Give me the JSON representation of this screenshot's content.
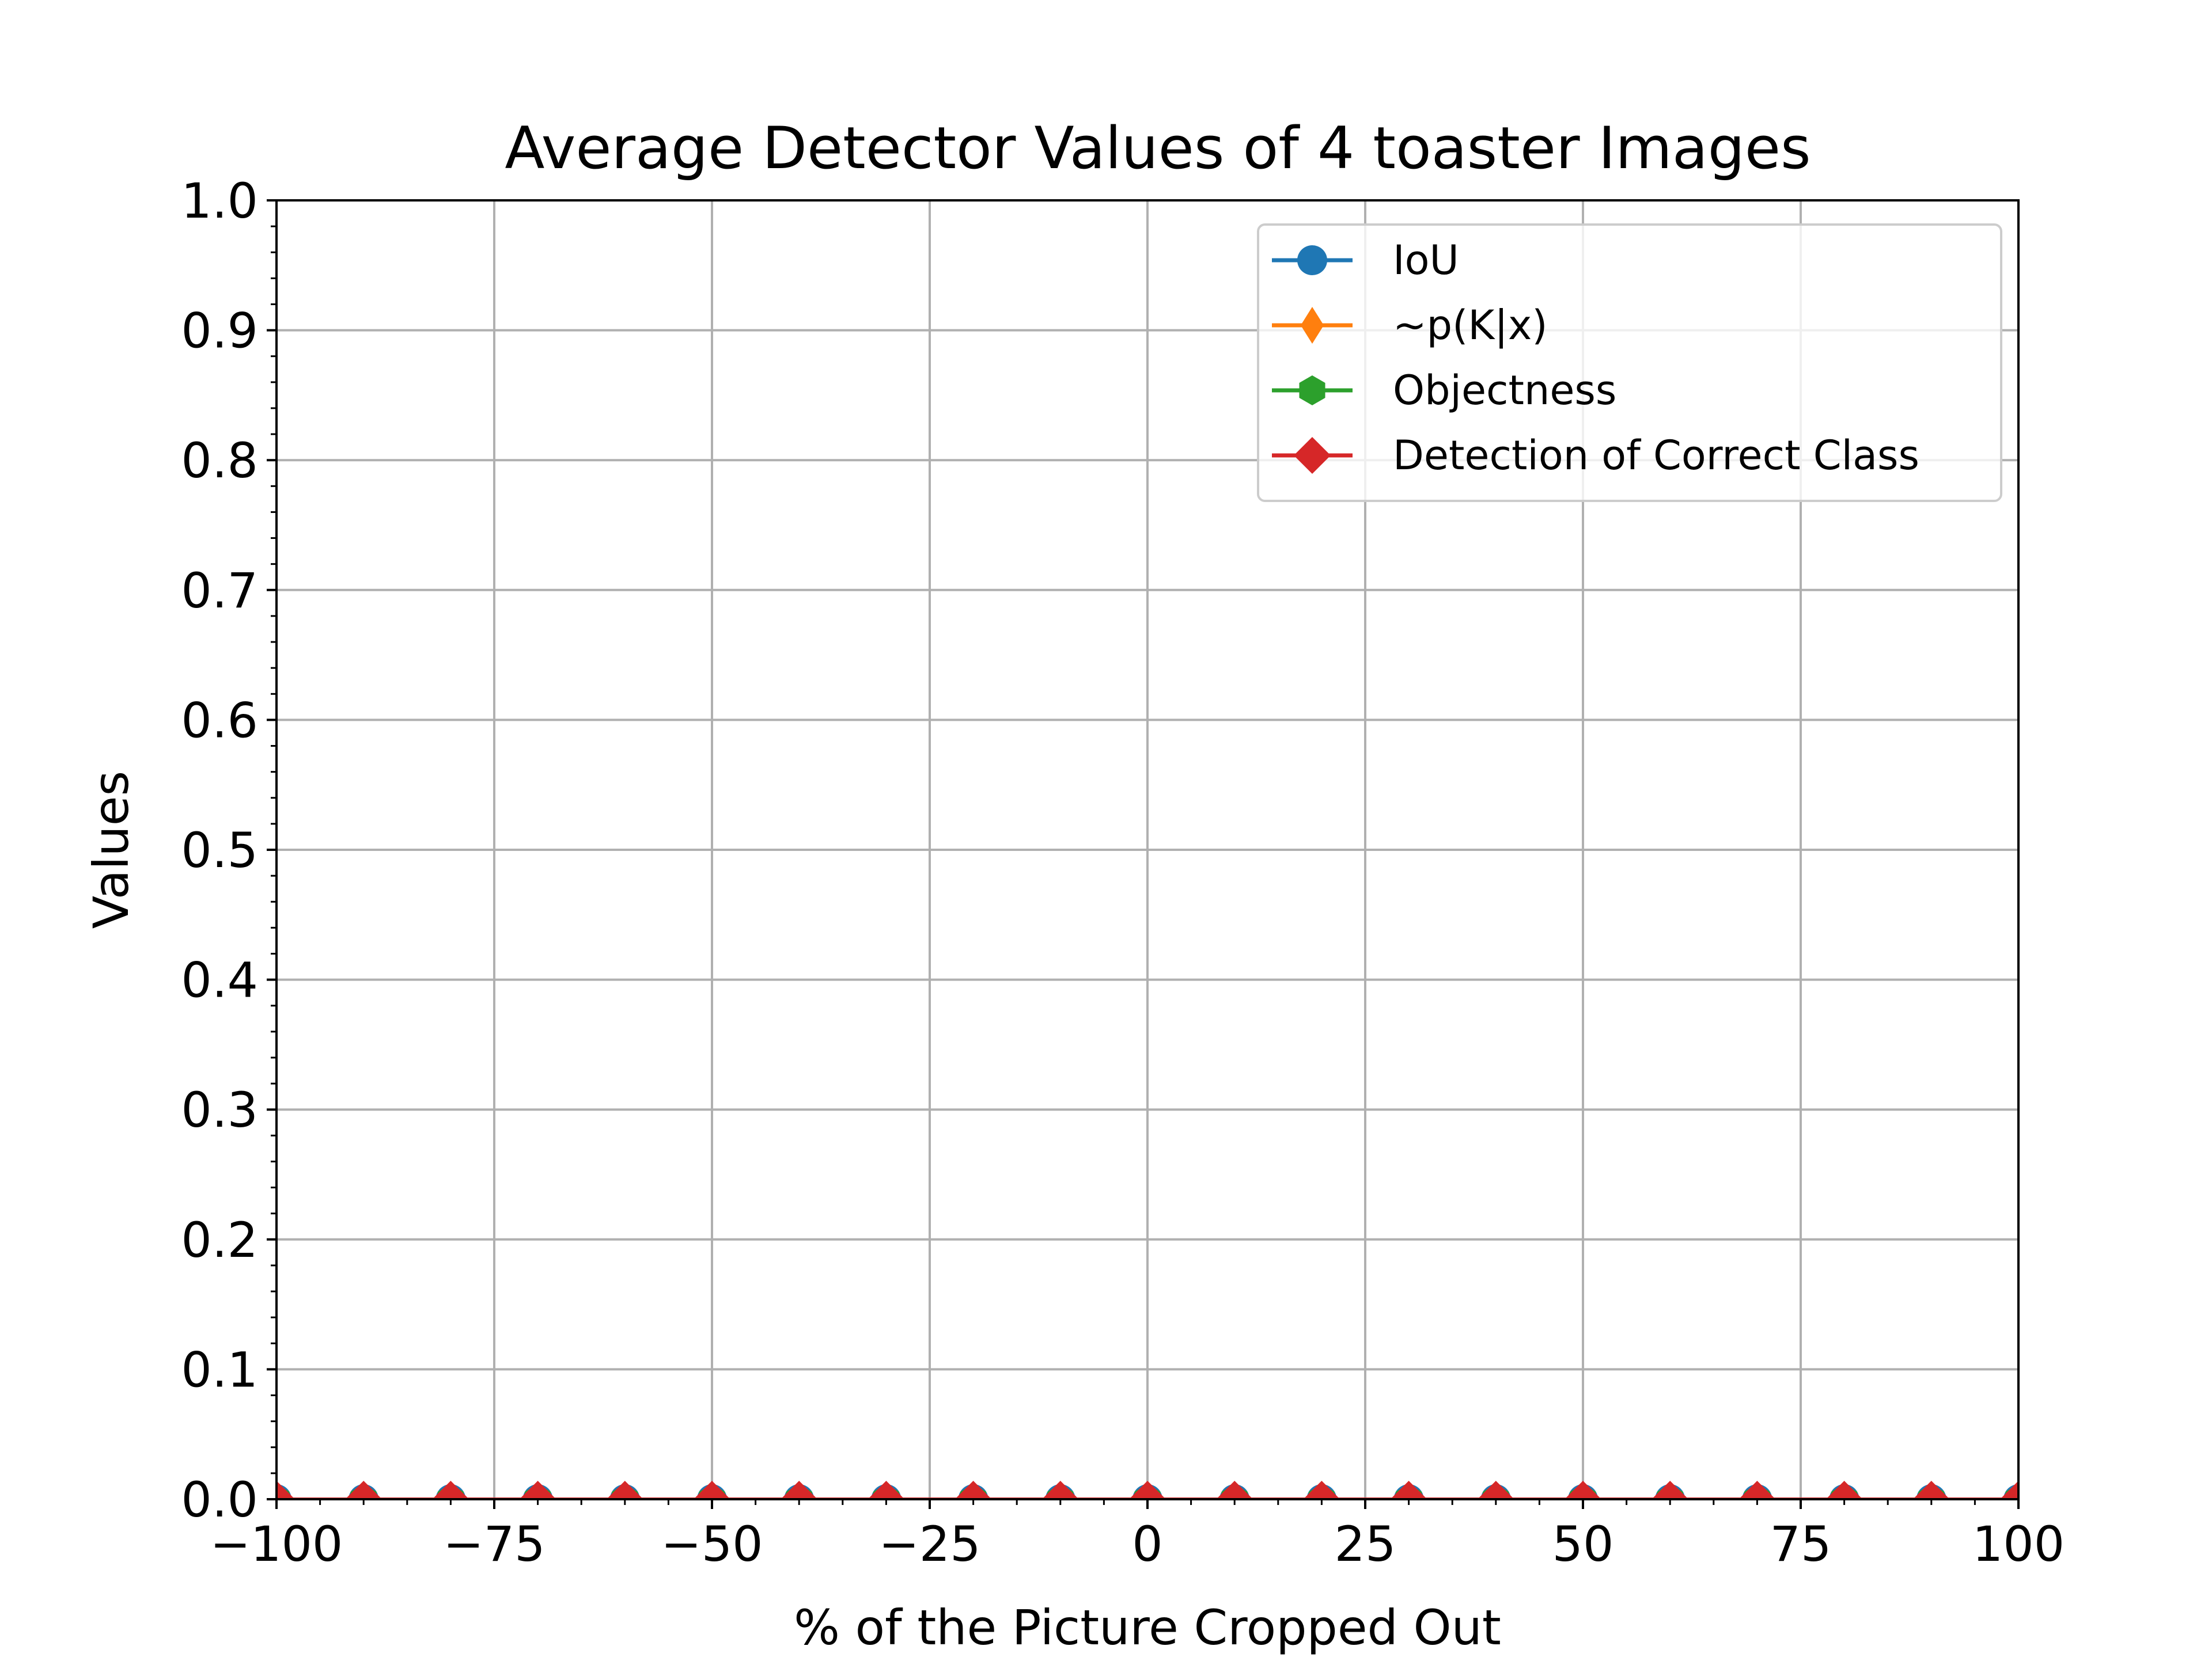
{
  "chart_data": {
    "type": "line",
    "title": "Average Detector Values of 4 toaster Images",
    "xlabel": "% of the Picture Cropped Out",
    "ylabel": "Values",
    "xlim": [
      -100,
      100
    ],
    "ylim": [
      0.0,
      1.0
    ],
    "grid": true,
    "legend_position": "top-right",
    "x_ticks": [
      "−100",
      "−75",
      "−50",
      "−25",
      "0",
      "25",
      "50",
      "75",
      "100"
    ],
    "x_tick_values": [
      -100,
      -75,
      -50,
      -25,
      0,
      25,
      50,
      75,
      100
    ],
    "y_ticks": [
      "0.0",
      "0.1",
      "0.2",
      "0.3",
      "0.4",
      "0.5",
      "0.6",
      "0.7",
      "0.8",
      "0.9",
      "1.0"
    ],
    "y_tick_values": [
      0.0,
      0.1,
      0.2,
      0.3,
      0.4,
      0.5,
      0.6,
      0.7,
      0.8,
      0.9,
      1.0
    ],
    "x": [
      -100,
      -90,
      -80,
      -70,
      -60,
      -50,
      -40,
      -30,
      -20,
      -10,
      0,
      10,
      20,
      30,
      40,
      50,
      60,
      70,
      80,
      90,
      100
    ],
    "series": [
      {
        "name": "IoU",
        "color": "#1f77b4",
        "marker": "circle",
        "values": [
          0,
          0,
          0,
          0,
          0,
          0,
          0,
          0,
          0,
          0,
          0,
          0,
          0,
          0,
          0,
          0,
          0,
          0,
          0,
          0,
          0
        ]
      },
      {
        "name": "~p(K|x)",
        "color": "#ff7f0e",
        "marker": "thin-diamond",
        "values": [
          0,
          0,
          0,
          0,
          0,
          0,
          0,
          0,
          0,
          0,
          0,
          0,
          0,
          0,
          0,
          0,
          0,
          0,
          0,
          0,
          0
        ]
      },
      {
        "name": "Objectness",
        "color": "#2ca02c",
        "marker": "hexagon",
        "values": [
          0,
          0,
          0,
          0,
          0,
          0,
          0,
          0,
          0,
          0,
          0,
          0,
          0,
          0,
          0,
          0,
          0,
          0,
          0,
          0,
          0
        ]
      },
      {
        "name": "Detection of Correct Class",
        "color": "#d62728",
        "marker": "diamond",
        "values": [
          0,
          0,
          0,
          0,
          0,
          0,
          0,
          0,
          0,
          0,
          0,
          0,
          0,
          0,
          0,
          0,
          0,
          0,
          0,
          0,
          0
        ]
      }
    ]
  }
}
